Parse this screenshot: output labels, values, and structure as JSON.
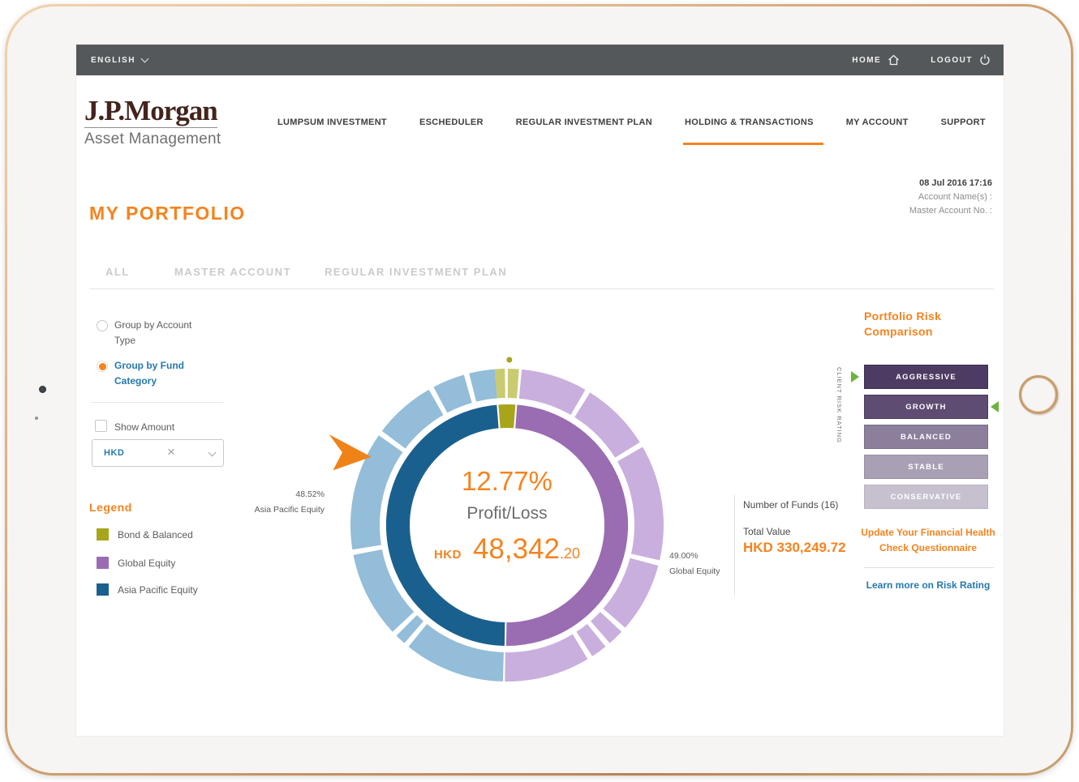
{
  "topbar": {
    "language": "ENGLISH",
    "home": "HOME",
    "logout": "LOGOUT"
  },
  "brand": {
    "name": "J.P.Morgan",
    "division": "Asset Management"
  },
  "nav": {
    "items": [
      {
        "label": "LUMPSUM INVESTMENT",
        "active": false
      },
      {
        "label": "ESCHEDULER",
        "active": false
      },
      {
        "label": "REGULAR INVESTMENT PLAN",
        "active": false
      },
      {
        "label": "HOLDING & TRANSACTIONS",
        "active": true
      },
      {
        "label": "MY ACCOUNT",
        "active": false
      },
      {
        "label": "SUPPORT",
        "active": false
      }
    ]
  },
  "account_info": {
    "datetime": "08 Jul 2016 17:16",
    "account_name_label": "Account Name(s) :",
    "master_account_label": "Master Account No. :"
  },
  "page_title": "MY PORTFOLIO",
  "tabs": [
    {
      "label": "ALL"
    },
    {
      "label": "MASTER ACCOUNT"
    },
    {
      "label": "REGULAR INVESTMENT PLAN"
    }
  ],
  "filters": {
    "group_by_account": "Group by Account Type",
    "group_by_fund": "Group by Fund Category",
    "show_amount": "Show Amount",
    "currency": "HKD"
  },
  "legend": {
    "title": "Legend",
    "items": [
      {
        "label": "Bond & Balanced",
        "color": "#a8a51b"
      },
      {
        "label": "Global Equity",
        "color": "#9a6cb2"
      },
      {
        "label": "Asia Pacific Equity",
        "color": "#1a608f"
      }
    ]
  },
  "summary": {
    "funds_label": "Number of Funds (16)",
    "total_value_label": "Total Value",
    "total_value": "HKD 330,249.72"
  },
  "risk": {
    "title": "Portfolio Risk Comparison",
    "axis_label": "CLIENT RISK RATING",
    "marker_color": "#6db33f",
    "bars": [
      {
        "label": "AGGRESSIVE",
        "color": "#4e3b63",
        "border": "#3e2e50"
      },
      {
        "label": "GROWTH",
        "color": "#5e4c73",
        "border": "#4c3c5e"
      },
      {
        "label": "BALANCED",
        "color": "#8c7f9c",
        "border": "#7a6c8b"
      },
      {
        "label": "STABLE",
        "color": "#aaa0b5",
        "border": "#9a8fa7"
      },
      {
        "label": "CONSERVATIVE",
        "color": "#c7c1cf",
        "border": "#b7b0c1"
      }
    ],
    "client_marker_bar": "AGGRESSIVE",
    "portfolio_marker_bar": "GROWTH",
    "update_link": "Update Your Financial Health Check Questionnaire",
    "learn_link": "Learn more on Risk Rating"
  },
  "chart_data": {
    "type": "donut",
    "center": {
      "percent": "12.77%",
      "label": "Profit/Loss",
      "currency": "HKD",
      "amount": "48,342",
      "decimals": ".20"
    },
    "slices": [
      {
        "name": "Bond & Balanced",
        "value": 2.48,
        "color": "#a8a51b",
        "start": -4.5,
        "end": 4.4
      },
      {
        "name": "Global Equity",
        "value": 49.0,
        "color": "#9a6cb2",
        "start": 4.4,
        "end": 180.8
      },
      {
        "name": "Asia Pacific Equity",
        "value": 48.52,
        "color": "#1a608f",
        "start": 180.8,
        "end": 355.5
      }
    ],
    "outer_segments": [
      {
        "color": "#c9cb70",
        "start": -4.5,
        "end": -0.8
      },
      {
        "color": "#c9cb70",
        "start": 0.3,
        "end": 4.4
      },
      {
        "color": "#c9afdd",
        "start": 5.4,
        "end": 30
      },
      {
        "color": "#c9afdd",
        "start": 32,
        "end": 58
      },
      {
        "color": "#c9afdd",
        "start": 60,
        "end": 103
      },
      {
        "color": "#c9afdd",
        "start": 105,
        "end": 131
      },
      {
        "color": "#c9afdd",
        "start": 133,
        "end": 139
      },
      {
        "color": "#c9afdd",
        "start": 141,
        "end": 147
      },
      {
        "color": "#c9afdd",
        "start": 149,
        "end": 180.8
      },
      {
        "color": "#93bdd8",
        "start": 181.5,
        "end": 219
      },
      {
        "color": "#93bdd8",
        "start": 221,
        "end": 225
      },
      {
        "color": "#93bdd8",
        "start": 227,
        "end": 259
      },
      {
        "color": "#93bdd8",
        "start": 261,
        "end": 305
      },
      {
        "color": "#93bdd8",
        "start": 307,
        "end": 330
      },
      {
        "color": "#93bdd8",
        "start": 332,
        "end": 344
      },
      {
        "color": "#93bdd8",
        "start": 346,
        "end": 355.5
      }
    ],
    "callouts": [
      {
        "percent": "48.52%",
        "name": "Asia Pacific Equity",
        "side": "left"
      },
      {
        "percent": "49.00%",
        "name": "Global Equity",
        "side": "right"
      }
    ],
    "marker_dot_color": "#a8a51b",
    "pointer_color": "#ef8318"
  }
}
